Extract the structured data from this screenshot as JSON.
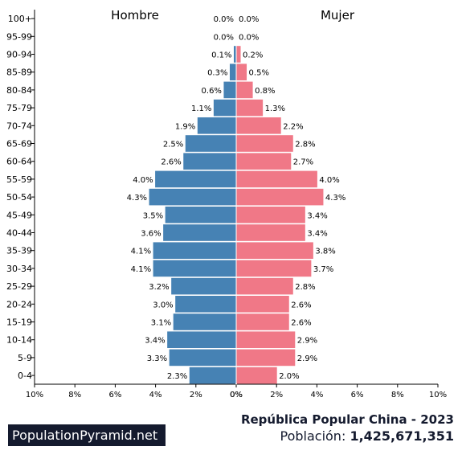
{
  "chart_data": {
    "type": "bar",
    "orientation": "horizontal",
    "series": [
      {
        "name": "Hombre",
        "color": "#4682b4",
        "values": [
          0.0,
          0.0,
          0.1,
          0.3,
          0.6,
          1.1,
          1.9,
          2.5,
          2.6,
          4.0,
          4.3,
          3.5,
          3.6,
          4.1,
          4.1,
          3.2,
          3.0,
          3.1,
          3.4,
          3.3,
          2.3
        ]
      },
      {
        "name": "Mujer",
        "color": "#f07887",
        "values": [
          0.0,
          0.0,
          0.2,
          0.5,
          0.8,
          1.3,
          2.2,
          2.8,
          2.7,
          4.0,
          4.3,
          3.4,
          3.4,
          3.8,
          3.7,
          2.8,
          2.6,
          2.6,
          2.9,
          2.9,
          2.0
        ]
      }
    ],
    "categories": [
      "100+",
      "95-99",
      "90-94",
      "85-89",
      "80-84",
      "75-79",
      "70-74",
      "65-69",
      "60-64",
      "55-59",
      "50-54",
      "45-49",
      "40-44",
      "35-39",
      "30-34",
      "25-29",
      "20-24",
      "15-19",
      "10-14",
      "5-9",
      "0-4"
    ],
    "left_ticks": [
      "10%",
      "8%",
      "6%",
      "4%",
      "2%",
      "0%"
    ],
    "right_ticks": [
      "0%",
      "2%",
      "4%",
      "6%",
      "8%",
      "10%"
    ],
    "xlim": [
      0,
      10
    ],
    "unit": "%"
  },
  "footer": {
    "brand": "PopulationPyramid.net",
    "title": "República Popular China - 2023",
    "population_label": "Población:",
    "population_value": "1,425,671,351"
  }
}
